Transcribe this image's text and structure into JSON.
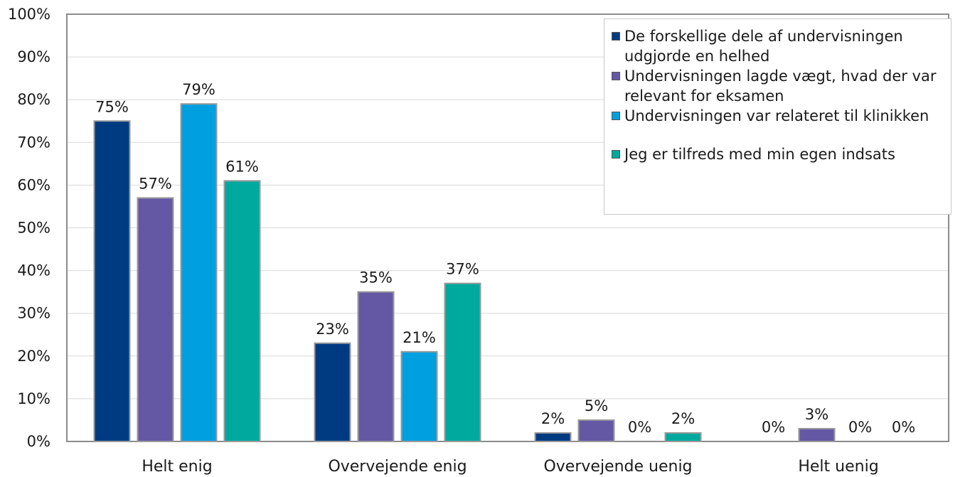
{
  "chart_data": {
    "type": "bar",
    "categories": [
      "Helt enig",
      "Overvejende enig",
      "Overvejende uenig",
      "Helt uenig"
    ],
    "series": [
      {
        "name": "De forskellige dele af undervisningen udgjorde en helhed",
        "color": "#003b82",
        "values": [
          75,
          23,
          2,
          0
        ],
        "labels": [
          "75%",
          "23%",
          "2%",
          "0%"
        ]
      },
      {
        "name": "Undervisningen lagde vægt, hvad der var relevant for eksamen",
        "color": "#6458a4",
        "values": [
          57,
          35,
          5,
          3
        ],
        "labels": [
          "57%",
          "35%",
          "5%",
          "3%"
        ]
      },
      {
        "name": "Undervisningen var relateret til klinikken",
        "color": "#009fe0",
        "values": [
          79,
          21,
          0,
          0
        ],
        "labels": [
          "79%",
          "21%",
          "0%",
          "0%"
        ]
      },
      {
        "name": "Jeg er tilfreds med min egen indsats",
        "color": "#00a99d",
        "values": [
          61,
          37,
          2,
          0
        ],
        "labels": [
          "61%",
          "37%",
          "2%",
          "0%"
        ]
      }
    ],
    "ylim": [
      0,
      100
    ],
    "yticks": [
      "0%",
      "10%",
      "20%",
      "30%",
      "40%",
      "50%",
      "60%",
      "70%",
      "80%",
      "90%",
      "100%"
    ],
    "grid": true,
    "legend_position": "top-right"
  }
}
